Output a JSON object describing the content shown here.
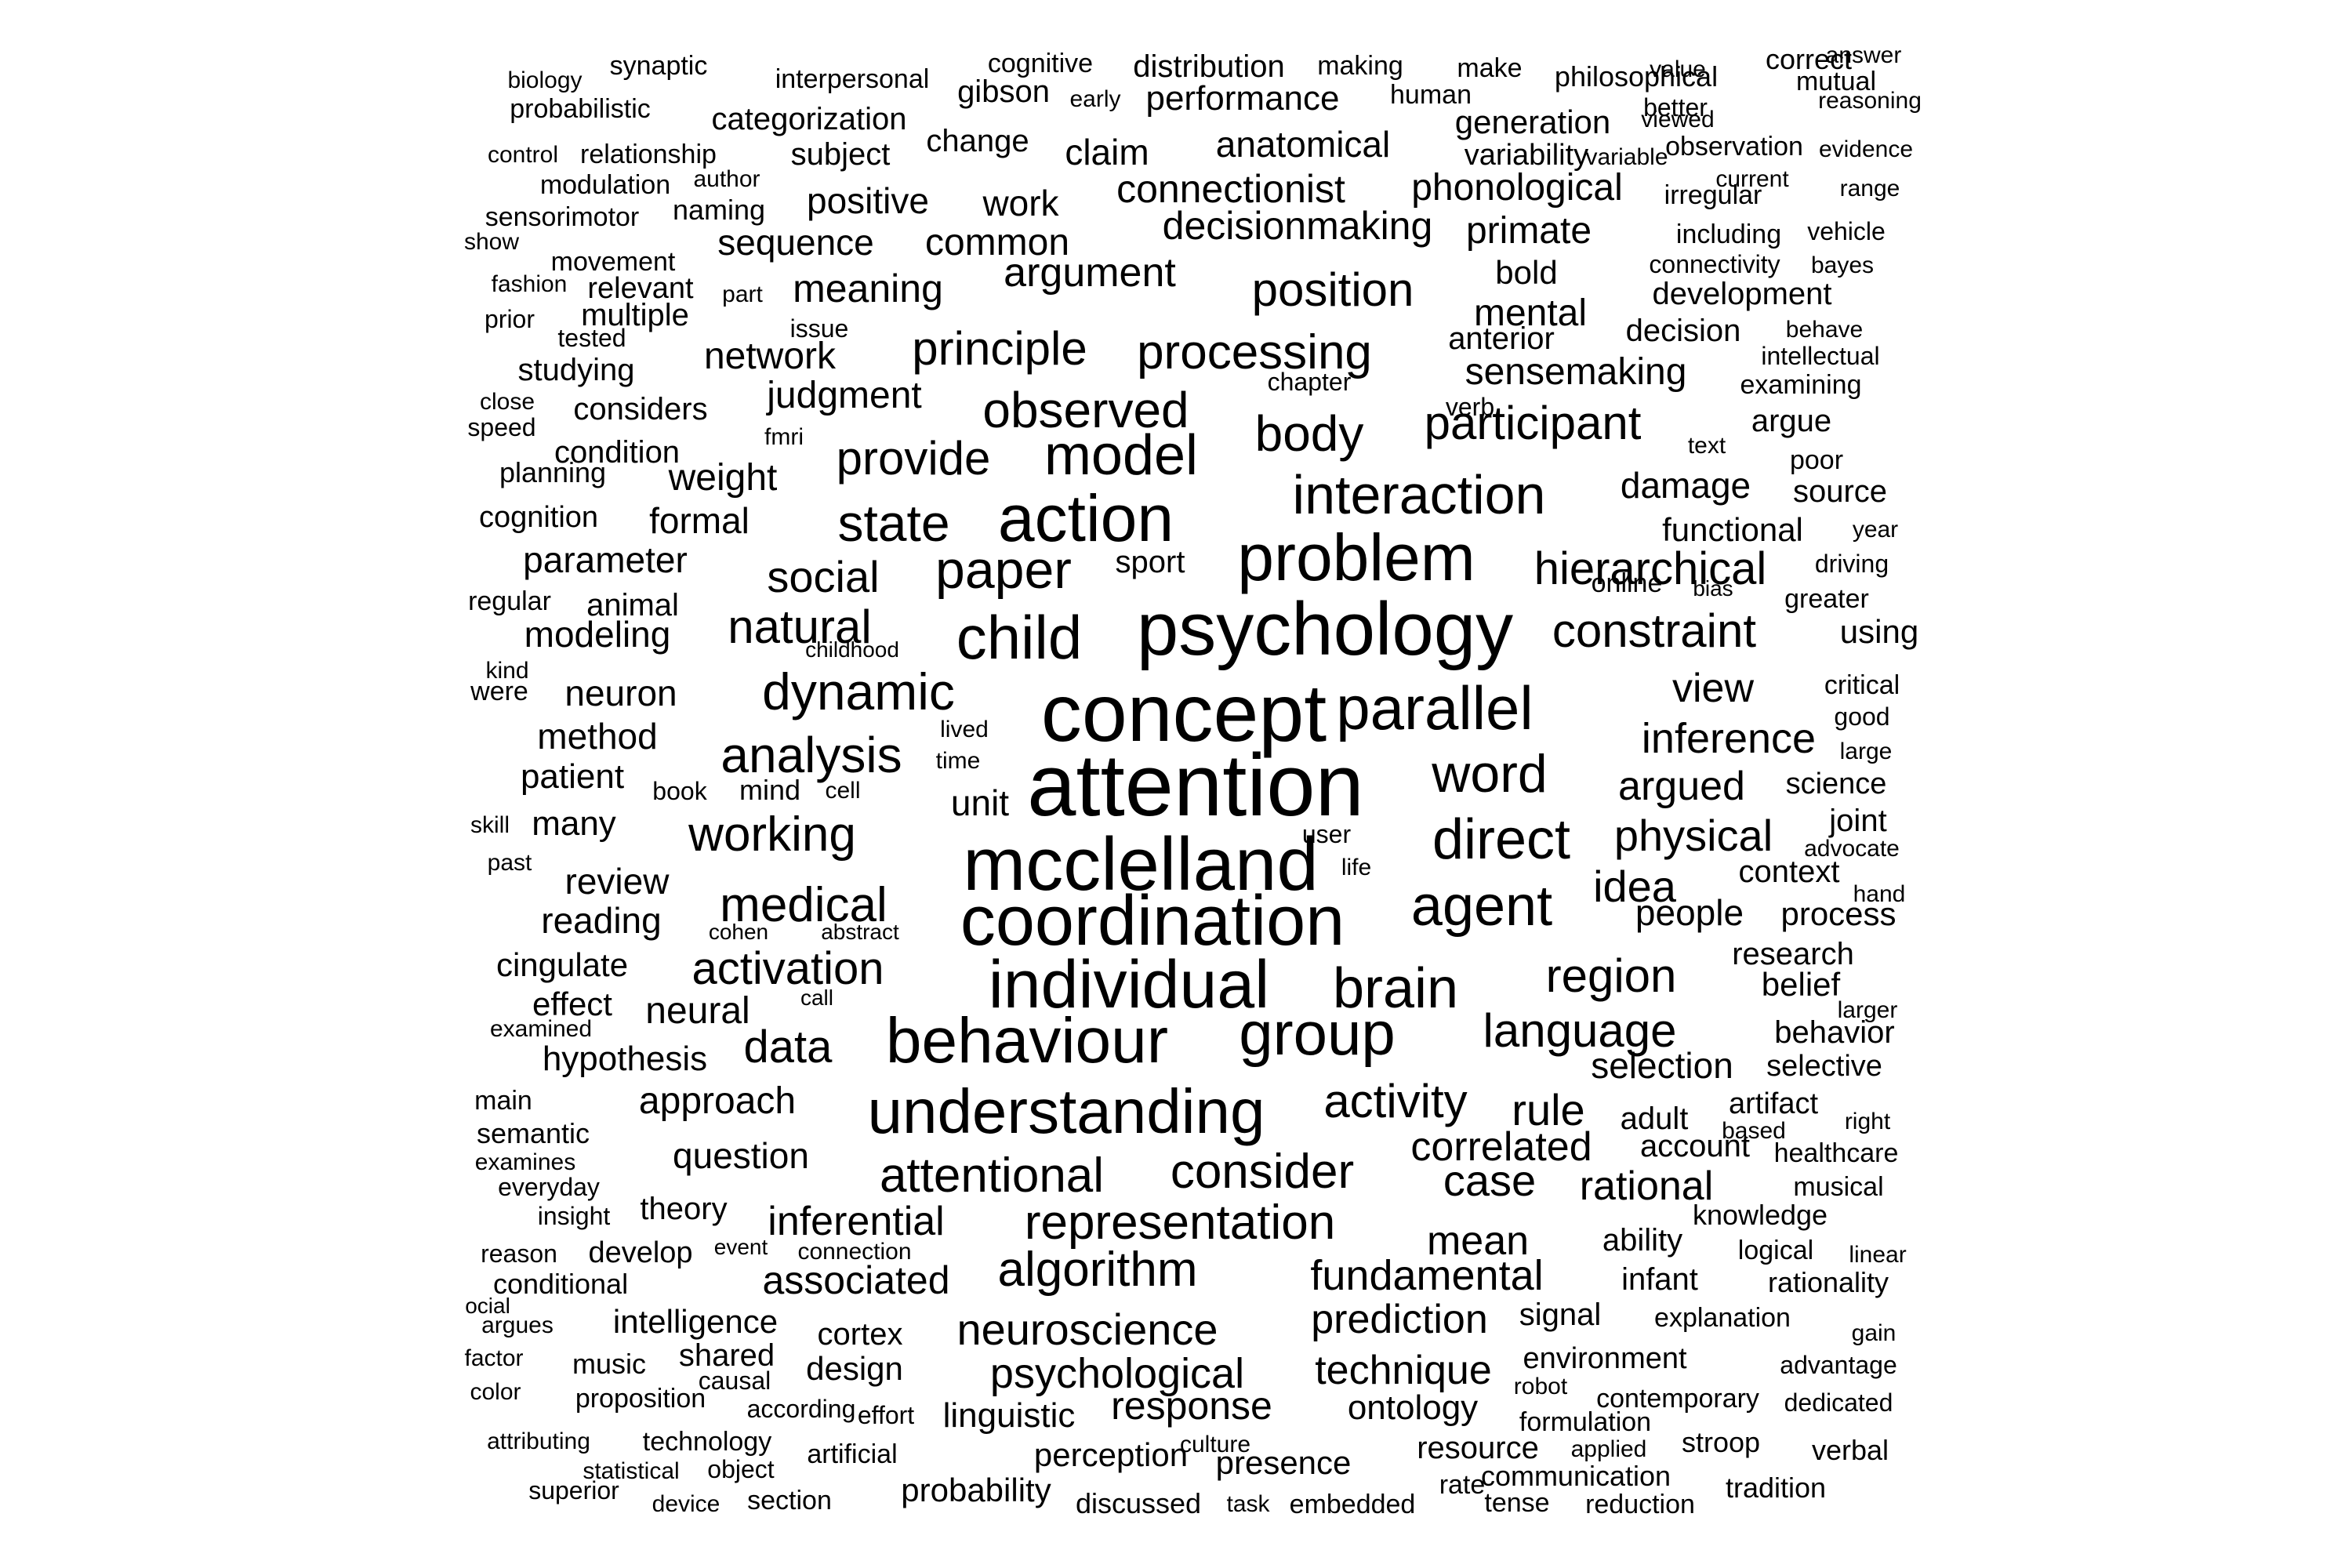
{
  "words": [
    "attention",
    "concept",
    "psychology",
    "mcclelland",
    "coordination",
    "individual",
    "behaviour",
    "understanding",
    "problem",
    "action",
    "model",
    "parallel",
    "child",
    "group",
    "brain",
    "direct",
    "agent",
    "interaction",
    "word",
    "observed",
    "paper",
    "state",
    "dynamic",
    "analysis",
    "working",
    "medical",
    "activation",
    "representation",
    "attentional",
    "consider",
    "algorithm",
    "body",
    "processing",
    "principle",
    "provide",
    "natural",
    "social",
    "participant",
    "hierarchical",
    "constraint",
    "position",
    "activity",
    "region",
    "language",
    "neuroscience",
    "psychological",
    "idea",
    "physical",
    "inference",
    "argued",
    "view",
    "data",
    "rule",
    "case",
    "correlated",
    "rational",
    "mean",
    "fundamental",
    "prediction",
    "technique",
    "response",
    "linguistic",
    "associated",
    "inferential",
    "question",
    "approach",
    "neural",
    "effect",
    "review",
    "reading",
    "hypothesis",
    "method",
    "patient",
    "many",
    "neuron",
    "modeling",
    "animal",
    "parameter",
    "formal",
    "weight",
    "judgment",
    "network",
    "meaning",
    "argument",
    "connectionist",
    "decisionmaking",
    "phonological",
    "primate",
    "bold",
    "mental",
    "anterior",
    "sensemaking",
    "damage",
    "functional",
    "unit",
    "people",
    "process",
    "context",
    "research",
    "belief",
    "behavior",
    "selection",
    "adult",
    "account",
    "ability",
    "infant",
    "signal",
    "environment",
    "ontology",
    "perception",
    "presence",
    "resource",
    "probability",
    "design",
    "cortex",
    "intelligence",
    "shared",
    "music",
    "theory",
    "develop",
    "conditional",
    "cingulate",
    "condition",
    "considers",
    "studying",
    "multiple",
    "relevant",
    "movement",
    "sequence",
    "common",
    "work",
    "positive",
    "naming",
    "modulation",
    "relationship",
    "subject",
    "claim",
    "anatomical",
    "change",
    "categorization",
    "probabilistic",
    "synaptic",
    "interpersonal",
    "cognitive",
    "gibson",
    "distribution",
    "making",
    "make",
    "philosophical",
    "human",
    "generation",
    "variability",
    "performance",
    "early",
    "biology",
    "control",
    "author",
    "sensorimotor",
    "show",
    "fashion",
    "part",
    "prior",
    "tested",
    "issue",
    "close",
    "speed",
    "fmri",
    "chapter",
    "planning",
    "cognition",
    "sport",
    "regular",
    "childhood",
    "kind",
    "were",
    "lived",
    "time",
    "book",
    "mind",
    "cell",
    "skill",
    "past",
    "user",
    "life",
    "cohen",
    "abstract",
    "call",
    "examined",
    "main",
    "semantic",
    "examines",
    "everyday",
    "insight",
    "reason",
    "event",
    "connection",
    "ocial",
    "argues",
    "factor",
    "color",
    "causal",
    "according",
    "effort",
    "proposition",
    "attributing",
    "technology",
    "statistical",
    "object",
    "artificial",
    "superior",
    "device",
    "section",
    "discussed",
    "task",
    "embedded",
    "culture",
    "rate",
    "communication",
    "tense",
    "reduction",
    "tradition",
    "applied",
    "stroop",
    "verbal",
    "dedicated",
    "advantage",
    "contemporary",
    "formulation",
    "robot",
    "gain",
    "explanation",
    "rationality",
    "logical",
    "linear",
    "knowledge",
    "musical",
    "healthcare",
    "based",
    "right",
    "artifact",
    "selective",
    "larger",
    "hand",
    "advocate",
    "joint",
    "science",
    "large",
    "good",
    "critical",
    "using",
    "greater",
    "driving",
    "year",
    "source",
    "poor",
    "argue",
    "text",
    "examining",
    "intellectual",
    "behave",
    "decision",
    "development",
    "bayes",
    "connectivity",
    "vehicle",
    "including",
    "irregular",
    "range",
    "current",
    "evidence",
    "observation",
    "better",
    "reasoning",
    "viewed",
    "variable",
    "value",
    "correct",
    "mutual",
    "answer",
    "verb",
    "online",
    "bias"
  ]
}
